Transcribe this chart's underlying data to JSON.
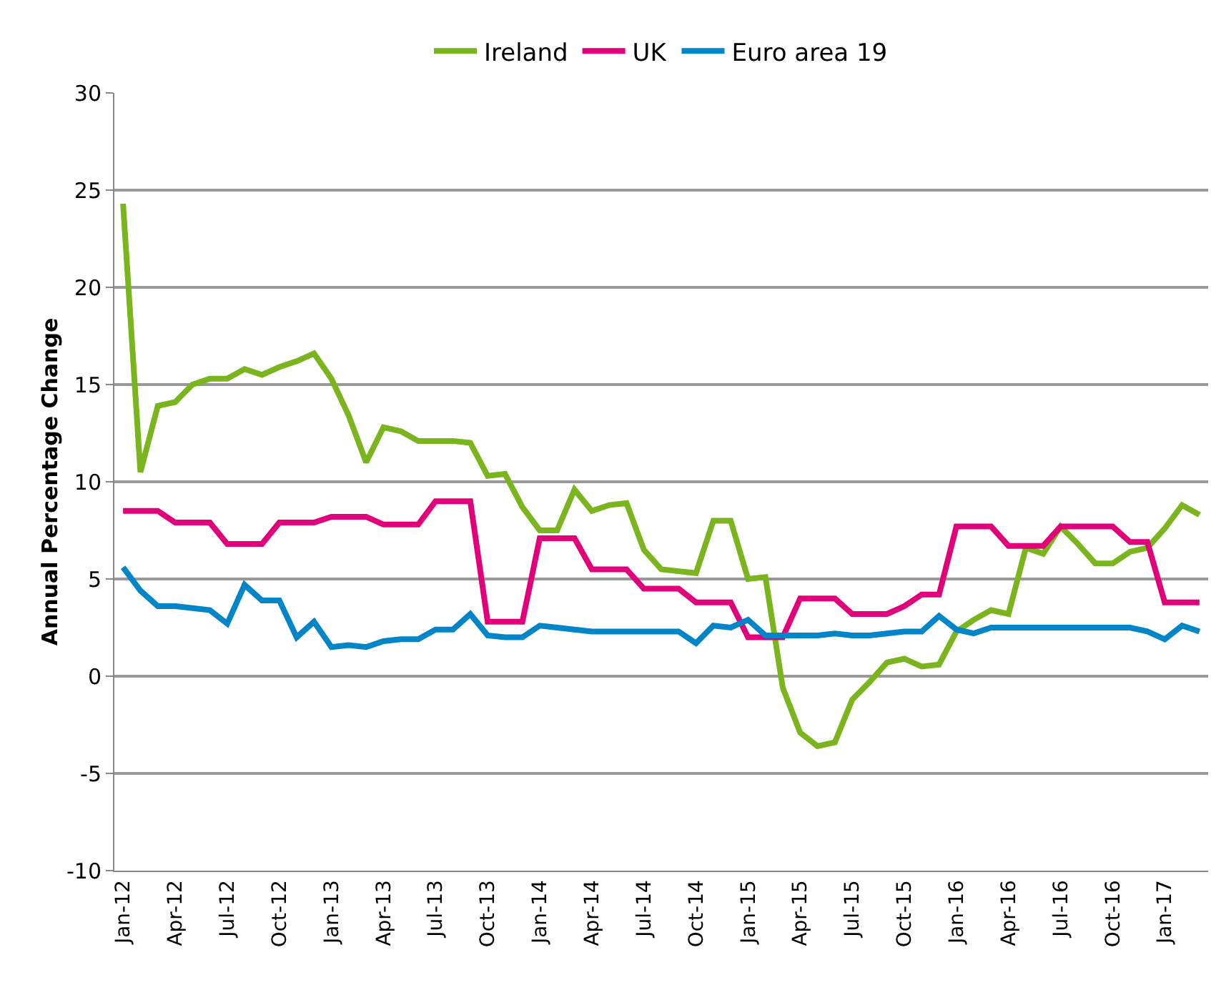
{
  "chart_data": {
    "type": "line",
    "ylabel": "Annual Percentage Change",
    "categories": [
      "Jan-12",
      null,
      null,
      "Apr-12",
      null,
      null,
      "Jul-12",
      null,
      null,
      "Oct-12",
      null,
      null,
      "Jan-13",
      null,
      null,
      "Apr-13",
      null,
      null,
      "Jul-13",
      null,
      null,
      "Oct-13",
      null,
      null,
      "Jan-14",
      null,
      null,
      "Apr-14",
      null,
      null,
      "Jul-14",
      null,
      null,
      "Oct-14",
      null,
      null,
      "Jan-15",
      null,
      null,
      "Apr-15",
      null,
      null,
      "Jul-15",
      null,
      null,
      "Oct-15",
      null,
      null,
      "Jan-16",
      null,
      null,
      "Apr-16",
      null,
      null,
      "Jul-16",
      null,
      null,
      "Oct-16",
      null,
      null,
      "Jan-17",
      null,
      null
    ],
    "series": [
      {
        "name": "Ireland",
        "color": "#7ab51d",
        "values": [
          24.3,
          10.5,
          13.9,
          14.1,
          15.0,
          15.3,
          15.3,
          15.8,
          15.5,
          15.9,
          16.2,
          16.6,
          15.3,
          13.4,
          11.0,
          12.8,
          12.6,
          12.1,
          12.1,
          12.1,
          12.0,
          10.3,
          10.4,
          8.7,
          7.5,
          7.5,
          9.6,
          8.5,
          8.8,
          8.9,
          6.5,
          5.5,
          5.4,
          5.3,
          8.0,
          8.0,
          5.0,
          5.1,
          -0.6,
          -2.9,
          -3.6,
          -3.4,
          -1.2,
          -0.3,
          0.7,
          0.9,
          0.5,
          0.6,
          2.3,
          2.9,
          3.4,
          3.2,
          6.6,
          6.3,
          7.7,
          6.8,
          5.8,
          5.8,
          6.4,
          6.6,
          7.6,
          8.8,
          8.3
        ]
      },
      {
        "name": "UK",
        "color": "#e2007a",
        "values": [
          8.5,
          8.5,
          8.5,
          7.9,
          7.9,
          7.9,
          6.8,
          6.8,
          6.8,
          7.9,
          7.9,
          7.9,
          8.2,
          8.2,
          8.2,
          7.8,
          7.8,
          7.8,
          9.0,
          9.0,
          9.0,
          2.8,
          2.8,
          2.8,
          7.1,
          7.1,
          7.1,
          5.5,
          5.5,
          5.5,
          4.5,
          4.5,
          4.5,
          3.8,
          3.8,
          3.8,
          2.0,
          2.0,
          2.0,
          4.0,
          4.0,
          4.0,
          3.2,
          3.2,
          3.2,
          3.6,
          4.2,
          4.2,
          7.7,
          7.7,
          7.7,
          6.7,
          6.7,
          6.7,
          7.7,
          7.7,
          7.7,
          7.7,
          6.9,
          6.9,
          3.8,
          3.8,
          3.8
        ]
      },
      {
        "name": "Euro area 19",
        "color": "#0085c8",
        "values": [
          5.6,
          4.4,
          3.6,
          3.6,
          3.5,
          3.4,
          2.7,
          4.7,
          3.9,
          3.9,
          2.0,
          2.8,
          1.5,
          1.6,
          1.5,
          1.8,
          1.9,
          1.9,
          2.4,
          2.4,
          3.2,
          2.1,
          2.0,
          2.0,
          2.6,
          2.5,
          2.4,
          2.3,
          2.3,
          2.3,
          2.3,
          2.3,
          2.3,
          1.7,
          2.6,
          2.5,
          2.9,
          2.1,
          2.1,
          2.1,
          2.1,
          2.2,
          2.1,
          2.1,
          2.2,
          2.3,
          2.3,
          3.1,
          2.4,
          2.2,
          2.5,
          2.5,
          2.5,
          2.5,
          2.5,
          2.5,
          2.5,
          2.5,
          2.5,
          2.3,
          1.9,
          2.6,
          2.3
        ]
      }
    ],
    "ylim": [
      -10,
      30
    ],
    "yticks": [
      -10,
      -5,
      0,
      5,
      10,
      15,
      20,
      25,
      30
    ],
    "grid": "y",
    "legend": "top",
    "marker": "none",
    "line_style": "solid"
  }
}
